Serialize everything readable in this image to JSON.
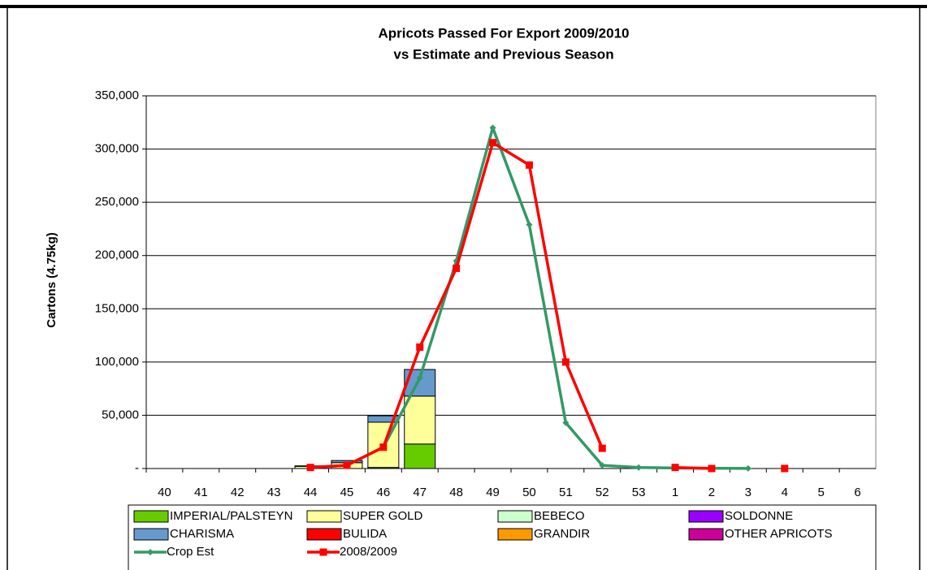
{
  "chart_data": {
    "type": "bar",
    "title": "Apricots Passed For Export 2009/2010",
    "subtitle": "vs Estimate and Previous Season",
    "y_label": "Cartons (4.75kg)",
    "categories": [
      "40",
      "41",
      "42",
      "43",
      "44",
      "45",
      "46",
      "47",
      "48",
      "49",
      "50",
      "51",
      "52",
      "53",
      "1",
      "2",
      "3",
      "4",
      "5",
      "6"
    ],
    "ylim": [
      0,
      350000
    ],
    "yticks": [
      {
        "value": 0,
        "label": "-"
      },
      {
        "value": 50000,
        "label": "50,000"
      },
      {
        "value": 100000,
        "label": "100,000"
      },
      {
        "value": 150000,
        "label": "150,000"
      },
      {
        "value": 200000,
        "label": "200,000"
      },
      {
        "value": 250000,
        "label": "250,000"
      },
      {
        "value": 300000,
        "label": "300,000"
      },
      {
        "value": 350000,
        "label": "350,000"
      }
    ],
    "grid": true,
    "series": [
      {
        "name": "IMPERIAL/PALSTEYN",
        "color": "#66cc00",
        "values": [
          0,
          0,
          0,
          0,
          0,
          0,
          1000,
          23000,
          0,
          0,
          0,
          0,
          0,
          0,
          0,
          0,
          0,
          0,
          0,
          0
        ]
      },
      {
        "name": "SUPER GOLD",
        "color": "#ffff99",
        "values": [
          0,
          0,
          0,
          0,
          2000,
          5500,
          42500,
          45000,
          0,
          0,
          0,
          0,
          0,
          0,
          0,
          0,
          0,
          0,
          0,
          0
        ]
      },
      {
        "name": "BEBECO",
        "color": "#ccffcc",
        "values": [
          0,
          0,
          0,
          0,
          0,
          0,
          0,
          0,
          0,
          0,
          0,
          0,
          0,
          0,
          0,
          0,
          0,
          0,
          0,
          0
        ]
      },
      {
        "name": "SOLDONNE",
        "color": "#9900ff",
        "values": [
          0,
          0,
          0,
          0,
          0,
          0,
          0,
          0,
          0,
          0,
          0,
          0,
          0,
          0,
          0,
          0,
          0,
          0,
          0,
          0
        ]
      },
      {
        "name": "CHARISMA",
        "color": "#6699cc",
        "values": [
          0,
          0,
          0,
          0,
          500,
          2000,
          6000,
          25000,
          0,
          0,
          0,
          0,
          0,
          0,
          0,
          0,
          0,
          0,
          0,
          0
        ]
      },
      {
        "name": "BULIDA",
        "color": "#ff0000",
        "values": [
          0,
          0,
          0,
          0,
          0,
          0,
          0,
          0,
          0,
          0,
          0,
          0,
          0,
          0,
          0,
          0,
          0,
          0,
          0,
          0
        ]
      },
      {
        "name": "GRANDIR",
        "color": "#ff9900",
        "values": [
          0,
          0,
          0,
          0,
          0,
          0,
          0,
          0,
          0,
          0,
          0,
          0,
          0,
          0,
          0,
          0,
          0,
          0,
          0,
          0
        ]
      },
      {
        "name": "OTHER APRICOTS",
        "color": "#cc0099",
        "values": [
          0,
          0,
          0,
          0,
          0,
          0,
          0,
          0,
          0,
          0,
          0,
          0,
          0,
          0,
          0,
          0,
          0,
          0,
          0,
          0
        ]
      },
      {
        "name": "Crop Est",
        "color": "#339966",
        "line": true,
        "marker": "diamond",
        "values": [
          null,
          null,
          null,
          null,
          1000,
          3000,
          20000,
          85000,
          195000,
          320000,
          229000,
          43000,
          3000,
          1000,
          500,
          200,
          100,
          null,
          null,
          null
        ]
      },
      {
        "name": "2008/2009",
        "color": "#ff0000",
        "line": true,
        "marker": "square",
        "values": [
          null,
          null,
          null,
          null,
          1000,
          3000,
          20000,
          114000,
          188000,
          306000,
          285000,
          100000,
          19000,
          null,
          1000,
          0,
          null,
          0,
          null,
          null
        ]
      }
    ]
  }
}
